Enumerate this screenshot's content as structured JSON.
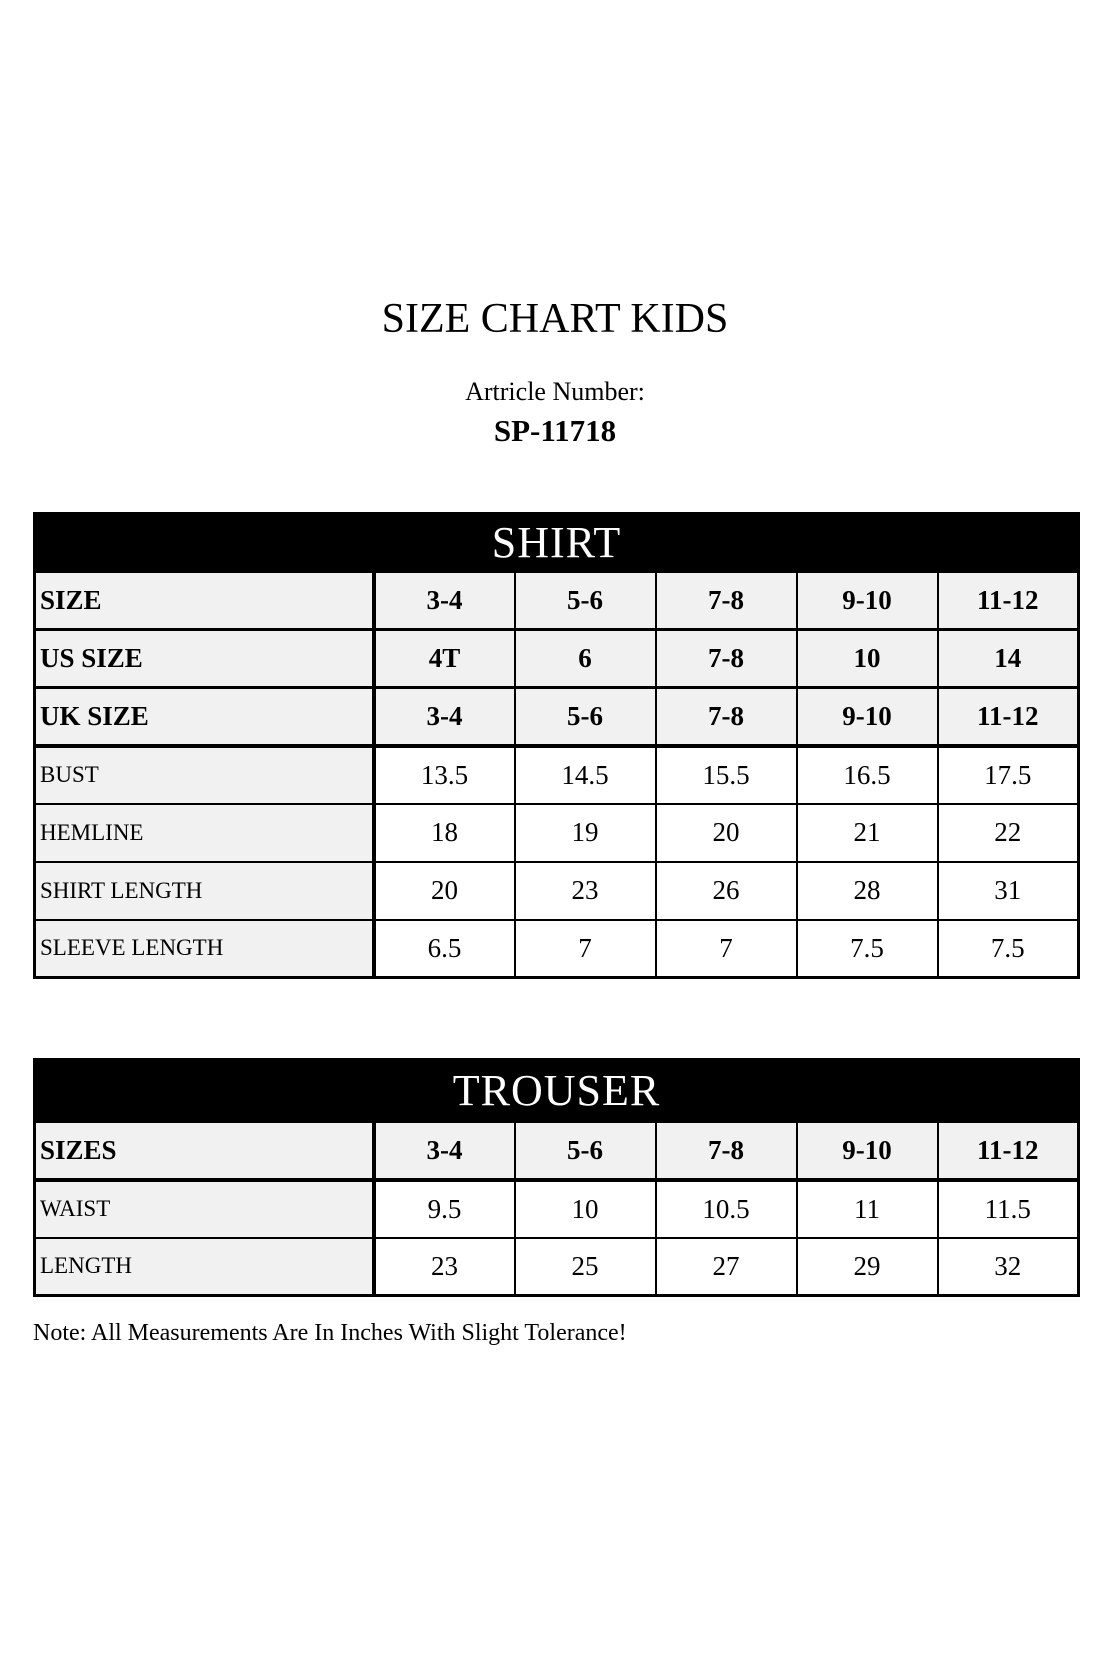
{
  "title": "SIZE CHART KIDS",
  "article": {
    "label": "Artricle Number:",
    "number": "SP-11718"
  },
  "shirt": {
    "header": "SHIRT",
    "rows": [
      {
        "label": "SIZE",
        "values": [
          "3-4",
          "5-6",
          "7-8",
          "9-10",
          "11-12"
        ]
      },
      {
        "label": "US SIZE",
        "values": [
          "4T",
          "6",
          "7-8",
          "10",
          "14"
        ]
      },
      {
        "label": "UK SIZE",
        "values": [
          "3-4",
          "5-6",
          "7-8",
          "9-10",
          "11-12"
        ]
      },
      {
        "label": "BUST",
        "values": [
          "13.5",
          "14.5",
          "15.5",
          "16.5",
          "17.5"
        ]
      },
      {
        "label": "HEMLINE",
        "values": [
          "18",
          "19",
          "20",
          "21",
          "22"
        ]
      },
      {
        "label": "SHIRT LENGTH",
        "values": [
          "20",
          "23",
          "26",
          "28",
          "31"
        ]
      },
      {
        "label": "SLEEVE LENGTH",
        "values": [
          "6.5",
          "7",
          "7",
          "7.5",
          "7.5"
        ]
      }
    ]
  },
  "trouser": {
    "header": "TROUSER",
    "rows": [
      {
        "label": "SIZES",
        "values": [
          "3-4",
          "5-6",
          "7-8",
          "9-10",
          "11-12"
        ]
      },
      {
        "label": "WAIST",
        "values": [
          "9.5",
          "10",
          "10.5",
          "11",
          "11.5"
        ]
      },
      {
        "label": "LENGTH",
        "values": [
          "23",
          "25",
          "27",
          "29",
          "32"
        ]
      }
    ]
  },
  "note": "Note: All Measurements Are In Inches With Slight Tolerance!",
  "colors": {
    "banner_bg": "#000000",
    "banner_text": "#ffffff",
    "label_cell_bg": "#f1f1f1",
    "border": "#000000",
    "page_bg": "#ffffff"
  }
}
